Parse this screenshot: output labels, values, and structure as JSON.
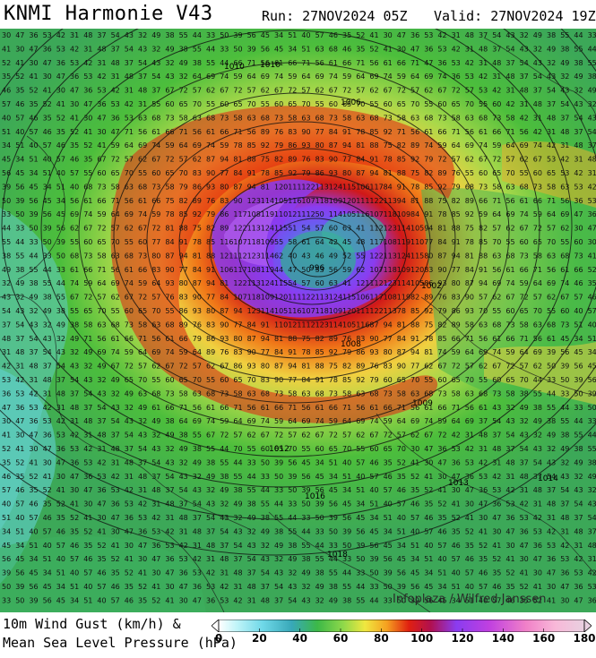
{
  "header": {
    "title": "KNMI Harmonie V43",
    "run": "Run: 27NOV2024 05Z",
    "valid": "Valid: 27NOV2024 19Z"
  },
  "legend": {
    "line1": "10m Wind Gust (km/h) &",
    "line2": "Mean Sea Level Pressure (hPa)",
    "tick_labels": [
      "0",
      "20",
      "40",
      "60",
      "80",
      "100",
      "120",
      "140",
      "160",
      "180"
    ],
    "range": [
      0,
      180
    ]
  },
  "map": {
    "credit": "Infoplaza / Wilfred Janssen",
    "low_center_label": "996",
    "isobar_labels": [
      "1010",
      "1006",
      "1002",
      "996",
      "1008",
      "1009",
      "1010",
      "1012",
      "1013",
      "1014",
      "1016",
      "1018"
    ]
  },
  "colors": {
    "cyan": "#6fe0f0",
    "teal": "#3fb0a8",
    "green": "#4cbe3c",
    "lightgreen": "#8fd24a",
    "yellow": "#f0e040",
    "orange": "#f5a020",
    "red": "#e02010",
    "purple": "#8a3cf0",
    "magenta": "#e040c0",
    "pink": "#f7a0c8"
  }
}
